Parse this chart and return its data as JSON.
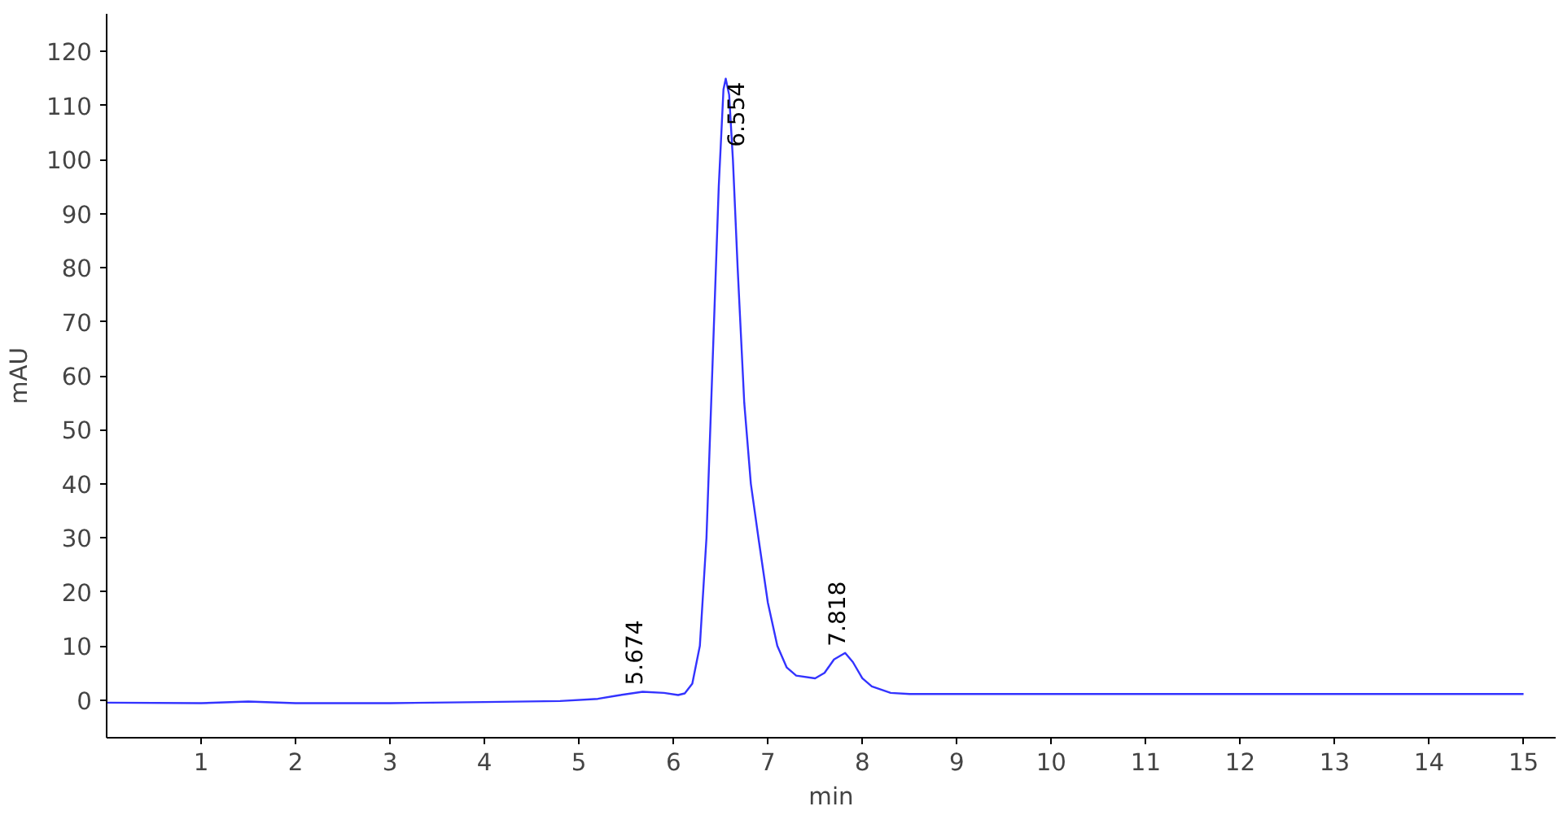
{
  "chart_data": {
    "type": "line",
    "xlabel": "min",
    "ylabel": "mAU",
    "x": [
      0,
      1,
      1.5,
      2,
      3,
      4,
      4.8,
      5.2,
      5.4,
      5.674,
      5.9,
      6.05,
      6.12,
      6.2,
      6.28,
      6.35,
      6.42,
      6.48,
      6.53,
      6.554,
      6.59,
      6.63,
      6.68,
      6.75,
      6.82,
      6.9,
      7.0,
      7.1,
      7.2,
      7.3,
      7.5,
      7.6,
      7.7,
      7.818,
      7.9,
      8.0,
      8.1,
      8.3,
      8.5,
      15
    ],
    "series": [
      {
        "color": "#3333ff",
        "values": [
          -0.5,
          -0.6,
          -0.3,
          -0.6,
          -0.6,
          -0.4,
          -0.2,
          0.2,
          0.8,
          1.5,
          1.3,
          0.9,
          1.2,
          3,
          10,
          30,
          65,
          95,
          113,
          115,
          112,
          100,
          80,
          55,
          40,
          30,
          18,
          10,
          6,
          4.5,
          4,
          5,
          7.5,
          8.7,
          7,
          4,
          2.5,
          1.3,
          1.1,
          1.1
        ]
      }
    ],
    "annotations": [
      {
        "text": "5.674",
        "x": 5.674,
        "y": 1.5
      },
      {
        "text": "6.554",
        "x": 6.554,
        "y": 115
      },
      {
        "text": "7.818",
        "x": 7.818,
        "y": 8.7
      }
    ],
    "xlim": [
      0,
      15.34
    ],
    "ylim": [
      -7,
      127
    ],
    "xticks": [
      1,
      2,
      3,
      4,
      5,
      6,
      7,
      8,
      9,
      10,
      11,
      12,
      13,
      14,
      15
    ],
    "yticks": [
      0,
      10,
      20,
      30,
      40,
      50,
      60,
      70,
      80,
      90,
      100,
      110,
      120
    ],
    "grid": false,
    "marker": "none",
    "line_style": "solid"
  }
}
